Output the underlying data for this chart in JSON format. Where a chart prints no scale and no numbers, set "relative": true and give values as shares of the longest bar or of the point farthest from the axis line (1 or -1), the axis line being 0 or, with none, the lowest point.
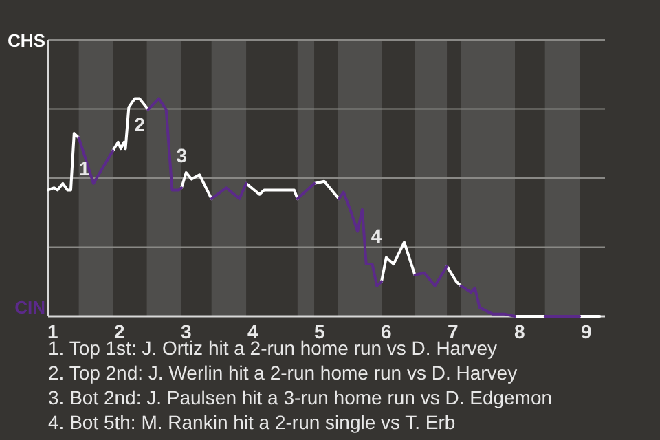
{
  "chart_data": {
    "type": "line",
    "relative": true,
    "xlim": [
      0.93,
      9.28
    ],
    "xticks": [
      1,
      2,
      3,
      4,
      5,
      6,
      7,
      8,
      9
    ],
    "grid": "y",
    "marker": "none",
    "line_style": "solid",
    "bands": [
      {
        "axis": "x",
        "from": 1.39,
        "to": 1.9,
        "color": "#4f4e4c"
      },
      {
        "axis": "x",
        "from": 2.41,
        "to": 2.93,
        "color": "#4f4e4c"
      },
      {
        "axis": "x",
        "from": 3.38,
        "to": 3.9,
        "color": "#4f4e4c"
      },
      {
        "axis": "x",
        "from": 4.67,
        "to": 4.92,
        "color": "#4f4e4c"
      },
      {
        "axis": "x",
        "from": 5.27,
        "to": 5.93,
        "color": "#4f4e4c"
      },
      {
        "axis": "x",
        "from": 6.43,
        "to": 6.91,
        "color": "#4f4e4c"
      },
      {
        "axis": "x",
        "from": 7.12,
        "to": 7.93,
        "color": "#4f4e4c"
      },
      {
        "axis": "x",
        "from": 8.38,
        "to": 8.9,
        "color": "#4f4e4c"
      }
    ],
    "series": [
      {
        "color": "#ffffff",
        "x": [
          0.93,
          1.02,
          1.07,
          1.15,
          1.22,
          1.27,
          1.32,
          1.39,
          1.6,
          1.9,
          1.98,
          2.02,
          2.07,
          2.09,
          2.14,
          2.23,
          2.3,
          2.43,
          2.6,
          2.93,
          3.0,
          3.08,
          3.2,
          3.38,
          3.6,
          3.9,
          4.1,
          4.17,
          4.62,
          4.67,
          4.8,
          4.92,
          5.07,
          5.29,
          5.6,
          5.93,
          6.0,
          6.11,
          6.27,
          6.43,
          6.6,
          6.91,
          7.05,
          7.12,
          7.5,
          7.93,
          8.38,
          8.6,
          8.9,
          9.2
        ],
        "values": [
          0.58,
          0.59,
          0.58,
          0.61,
          0.58,
          0.58,
          0.84,
          0.82,
          null,
          0.76,
          0.8,
          0.77,
          0.8,
          0.77,
          0.96,
          1,
          1,
          0.95,
          null,
          0.59,
          0.66,
          0.63,
          0.65,
          0.54,
          null,
          0.61,
          0.56,
          0.58,
          0.58,
          0.54,
          null,
          0.61,
          0.62,
          0.54,
          null,
          0.16,
          0.27,
          0.24,
          0.34,
          0.19,
          null,
          0.23,
          0.16,
          0.14,
          null,
          0,
          0,
          null,
          0,
          0
        ]
      },
      {
        "color": "#5b2a8a",
        "x": [
          1.39,
          1.61,
          1.9,
          2.1,
          2.43,
          2.59,
          2.7,
          2.79,
          2.89,
          2.93,
          3.1,
          3.38,
          3.6,
          3.8,
          3.9,
          4.3,
          4.67,
          4.92,
          5.1,
          5.29,
          5.36,
          5.46,
          5.57,
          5.64,
          5.7,
          5.79,
          5.86,
          5.93,
          6.2,
          6.43,
          6.57,
          6.73,
          6.91,
          7.0,
          7.12,
          7.27,
          7.33,
          7.4,
          7.6,
          7.77,
          7.93,
          8.1,
          8.38,
          8.9
        ],
        "values": [
          0.82,
          0.61,
          0.76,
          null,
          0.95,
          1,
          0.95,
          0.58,
          0.58,
          0.59,
          null,
          0.54,
          0.59,
          0.54,
          0.61,
          null,
          0.54,
          0.61,
          null,
          0.54,
          0.57,
          0.49,
          0.39,
          0.49,
          0.24,
          0.24,
          0.14,
          0.16,
          null,
          0.19,
          0.2,
          0.14,
          0.23,
          null,
          0.14,
          0.11,
          0.13,
          0.04,
          0.01,
          0.01,
          0,
          null,
          0,
          0
        ]
      }
    ],
    "annotations": [
      {
        "text": "1",
        "x": 1.29,
        "y": 0.68
      },
      {
        "text": "2",
        "x": 2.12,
        "y": 0.88
      },
      {
        "text": "3",
        "x": 2.75,
        "y": 0.74
      },
      {
        "text": "4",
        "x": 5.67,
        "y": 0.37
      },
      "CHS",
      "CIN",
      "1. Top 1st: J. Ortiz hit a 2-run home run vs D. Harvey",
      "2. Top 2nd: J. Werlin hit a 2-run home run vs D. Harvey",
      "3. Bot 2nd: J. Paulsen hit a 3-run home run vs D. Edgemon",
      "4. Bot 5th: M. Rankin hit a 2-run single vs T. Erb"
    ]
  }
}
